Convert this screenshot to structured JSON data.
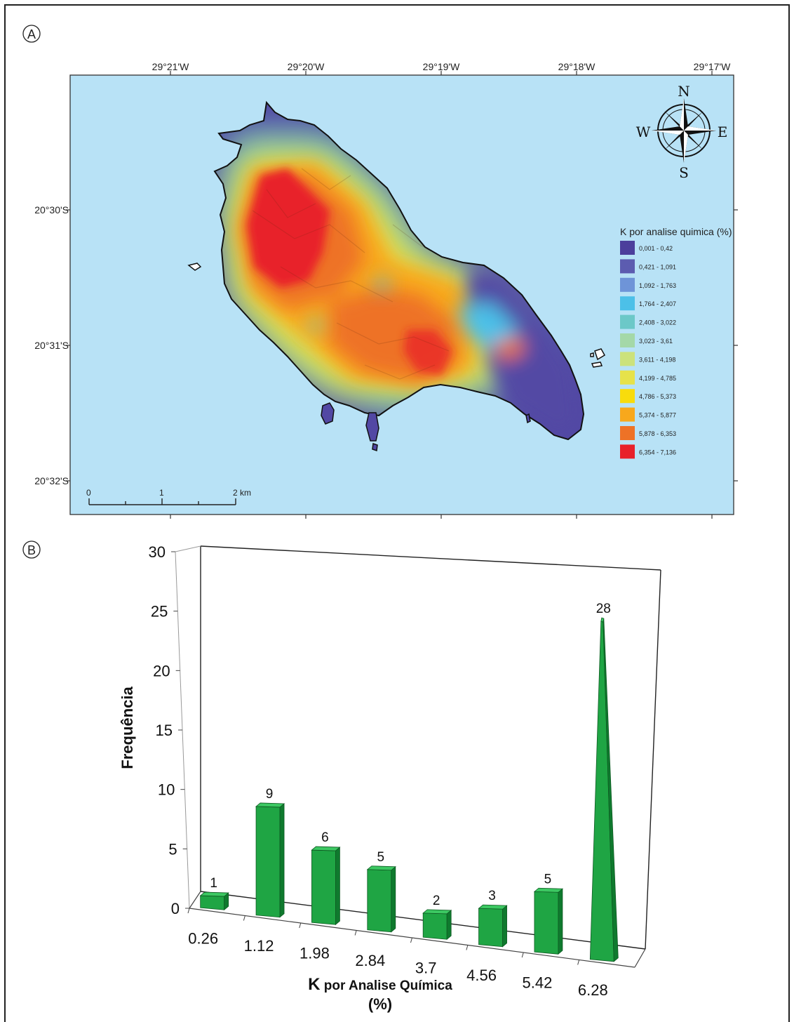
{
  "panel_a": {
    "label": "A",
    "lon_ticks": [
      "29°21'W",
      "29°20'W",
      "29°19'W",
      "29°18'W",
      "29°17'W"
    ],
    "lat_ticks": [
      "20°30'S",
      "20°31'S",
      "20°32'S"
    ],
    "compass": {
      "n": "N",
      "s": "S",
      "e": "E",
      "w": "W"
    },
    "scalebar": {
      "labels": [
        "0",
        "1",
        "2 km"
      ]
    },
    "legend": {
      "title": "K por analise quimica (%)",
      "items": [
        {
          "label": "0,001 - 0,42",
          "color": "#4c3f9c"
        },
        {
          "label": "0,421 - 1,091",
          "color": "#5c5cb0"
        },
        {
          "label": "1,092 - 1,763",
          "color": "#6e94d8"
        },
        {
          "label": "1,764 - 2,407",
          "color": "#4cc0e8"
        },
        {
          "label": "2,408 - 3,022",
          "color": "#6cc8c8"
        },
        {
          "label": "3,023 - 3,61",
          "color": "#a4d8a8"
        },
        {
          "label": "3,611 - 4,198",
          "color": "#cce27c"
        },
        {
          "label": "4,199 - 4,785",
          "color": "#e6e24a"
        },
        {
          "label": "4,786 - 5,373",
          "color": "#f8dc0c"
        },
        {
          "label": "5,374 - 5,877",
          "color": "#f8a81c"
        },
        {
          "label": "5,878 - 6,353",
          "color": "#ee7226"
        },
        {
          "label": "6,354 - 7,136",
          "color": "#e8202a"
        }
      ]
    },
    "sea_color": "#b8e2f6"
  },
  "panel_b": {
    "label": "B",
    "chart_data": {
      "type": "bar",
      "categories": [
        "0.26",
        "1.12",
        "1.98",
        "2.84",
        "3.7",
        "4.56",
        "5.42",
        "6.28"
      ],
      "values": [
        1,
        9,
        6,
        5,
        2,
        3,
        5,
        28
      ],
      "xlabel_line1_big": "K",
      "xlabel_line1_rest": " por Analise Química",
      "xlabel_line2": "(%)",
      "ylabel": "Frequência",
      "yticks": [
        "0",
        "5",
        "10",
        "15",
        "20",
        "25",
        "30"
      ],
      "ylim": [
        0,
        30
      ],
      "bar_color": "#1fa544",
      "bar_style": "3d"
    }
  }
}
